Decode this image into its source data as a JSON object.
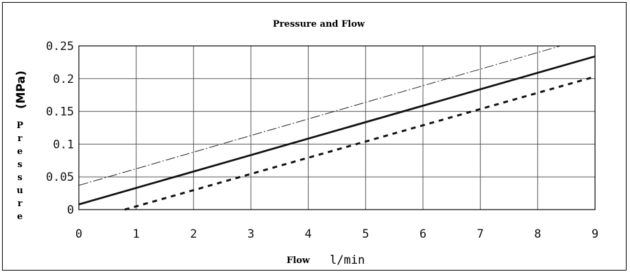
{
  "chart_data": {
    "type": "line",
    "title": "Pressure and Flow",
    "xlabel_word": "Flow",
    "xlabel_unit": "l/min",
    "ylabel_unit": "(MPa)",
    "ylabel_word": "Pressure",
    "xlim": [
      0,
      9
    ],
    "ylim": [
      0,
      0.25
    ],
    "x_ticks": [
      "0",
      "1",
      "2",
      "3",
      "4",
      "5",
      "6",
      "7",
      "8",
      "9"
    ],
    "y_ticks": [
      "0",
      "0.05",
      "0.1",
      "0.15",
      "0.2",
      "0.25"
    ],
    "grid": true,
    "series": [
      {
        "style": "dash-dot",
        "x": [
          0,
          8.4
        ],
        "y": [
          0.037,
          0.25
        ]
      },
      {
        "style": "solid",
        "x": [
          0,
          9
        ],
        "y": [
          0.008,
          0.234
        ]
      },
      {
        "style": "dashed",
        "x": [
          0.8,
          9
        ],
        "y": [
          0.0,
          0.203
        ]
      }
    ]
  }
}
